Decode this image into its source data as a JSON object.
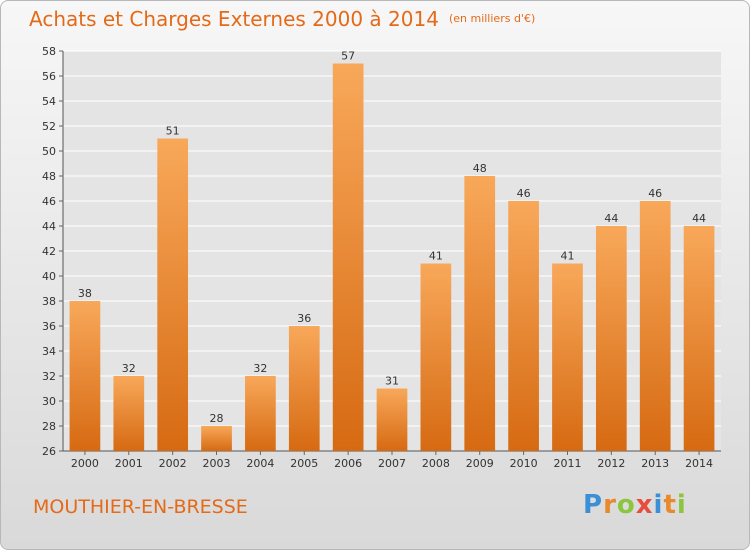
{
  "header": {
    "title": "Achats et Charges Externes 2000 à 2014",
    "unit": "(en milliers d'€)"
  },
  "footer": {
    "place": "MOUTHIER-EN-BRESSE",
    "logo_letters": [
      {
        "ch": "P",
        "color": "#3a8fd6"
      },
      {
        "ch": "r",
        "color": "#e8892b"
      },
      {
        "ch": "o",
        "color": "#8cc63f"
      },
      {
        "ch": "x",
        "color": "#e84c3d"
      },
      {
        "ch": "i",
        "color": "#3a8fd6"
      },
      {
        "ch": "t",
        "color": "#e8892b"
      },
      {
        "ch": "i",
        "color": "#8cc63f"
      }
    ]
  },
  "colors": {
    "bar_top": "#f8a85a",
    "bar_bottom": "#d66a12",
    "grid": "#ffffff",
    "text_accent": "#e46a1a"
  },
  "chart_data": {
    "type": "bar",
    "categories": [
      "2000",
      "2001",
      "2002",
      "2003",
      "2004",
      "2005",
      "2006",
      "2007",
      "2008",
      "2009",
      "2010",
      "2011",
      "2012",
      "2013",
      "2014"
    ],
    "values": [
      38,
      32,
      51,
      28,
      32,
      36,
      57,
      31,
      41,
      48,
      46,
      41,
      44,
      46,
      44
    ],
    "ylim": [
      26,
      58
    ],
    "ytick_step": 2,
    "grid": true,
    "legend": "none"
  }
}
